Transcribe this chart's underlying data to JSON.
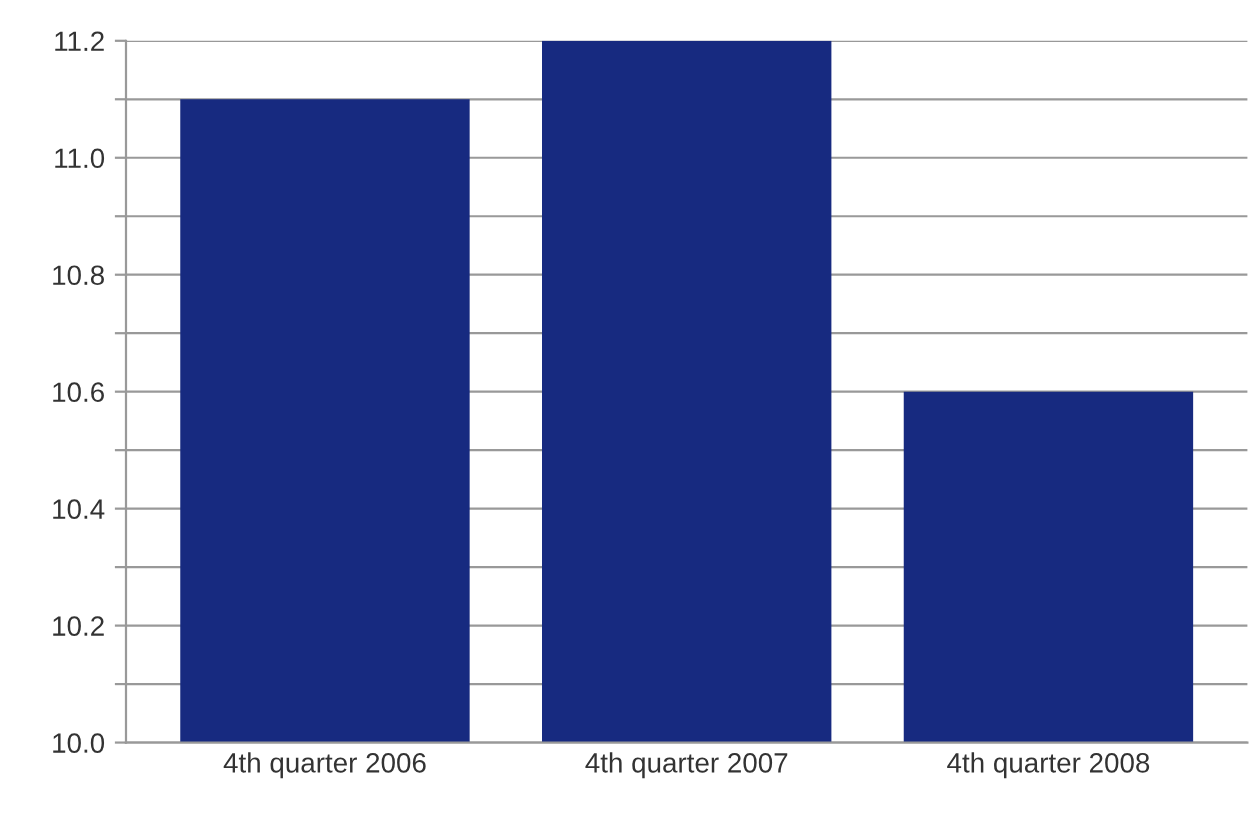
{
  "chart_data": {
    "type": "bar",
    "categories": [
      "4th quarter 2006",
      "4th quarter 2007",
      "4th quarter 2008"
    ],
    "values": [
      11.1,
      11.2,
      10.6
    ],
    "color": "#172a80",
    "ylim": [
      10.0,
      11.2
    ],
    "yticks": [
      "10.0",
      {
        "value": 10.1,
        "label": null
      },
      {
        "value": 10.2,
        "label": "10.2"
      },
      {
        "value": 10.3,
        "label": null
      },
      {
        "value": 10.4,
        "label": "10.4"
      },
      {
        "value": 10.5,
        "label": null
      },
      {
        "value": 10.6,
        "label": "10.6"
      },
      {
        "value": 10.7,
        "label": null
      },
      {
        "value": 10.8,
        "label": "10.8"
      },
      {
        "value": 10.9,
        "label": null
      },
      {
        "value": 11.0,
        "label": "11.0"
      },
      {
        "value": 11.1,
        "label": null
      },
      {
        "value": 11.2,
        "label": "11.2"
      }
    ],
    "grid": "y"
  }
}
